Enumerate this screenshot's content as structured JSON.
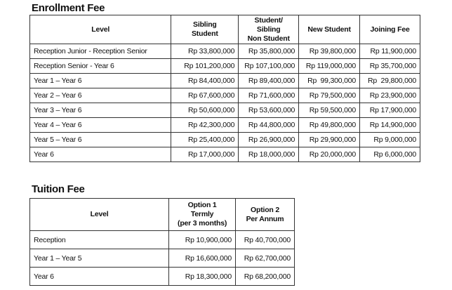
{
  "enrollment": {
    "title": "Enrollment Fee",
    "headers": [
      "Level",
      "Sibling\nStudent",
      "Student/\nSibling\nNon Student",
      "New Student",
      "Joining Fee"
    ],
    "rows": [
      [
        "Reception Junior - Reception Senior",
        "Rp 33,800,000",
        "Rp 35,800,000",
        "Rp 39,800,000",
        "Rp 11,900,000"
      ],
      [
        "Reception Senior - Year 6",
        "Rp 101,200,000",
        "Rp 107,100,000",
        "Rp 119,000,000",
        "Rp 35,700,000"
      ],
      [
        "Year 1 – Year 6",
        "Rp 84,400,000",
        "Rp 89,400,000",
        "Rp  99,300,000",
        "Rp  29,800,000"
      ],
      [
        "Year 2 – Year 6",
        "Rp 67,600,000",
        "Rp 71,600,000",
        "Rp 79,500,000",
        "Rp 23,900,000"
      ],
      [
        "Year 3 – Year 6",
        "Rp 50,600,000",
        "Rp 53,600,000",
        "Rp 59,500,000",
        "Rp 17,900,000"
      ],
      [
        "Year 4 – Year 6",
        "Rp 42,300,000",
        "Rp 44,800,000",
        "Rp 49,800,000",
        "Rp 14,900,000"
      ],
      [
        "Year 5 – Year 6",
        "Rp 25,400,000",
        "Rp 26,900,000",
        "Rp 29,900,000",
        "Rp 9,000,000"
      ],
      [
        "Year 6",
        "Rp 17,000,000",
        "Rp 18,000,000",
        "Rp 20,000,000",
        "Rp 6,000,000"
      ]
    ]
  },
  "tuition": {
    "title": "Tuition Fee",
    "headers": [
      "Level",
      "Option 1\nTermly\n(per 3 months)",
      "Option 2\nPer Annum"
    ],
    "rows": [
      [
        "Reception",
        "Rp 10,900,000",
        "Rp 40,700,000"
      ],
      [
        "Year 1 – Year 5",
        "Rp 16,600,000",
        "Rp 62,700,000"
      ],
      [
        "Year 6",
        "Rp 18,300,000",
        "Rp 68,200,000"
      ]
    ]
  }
}
